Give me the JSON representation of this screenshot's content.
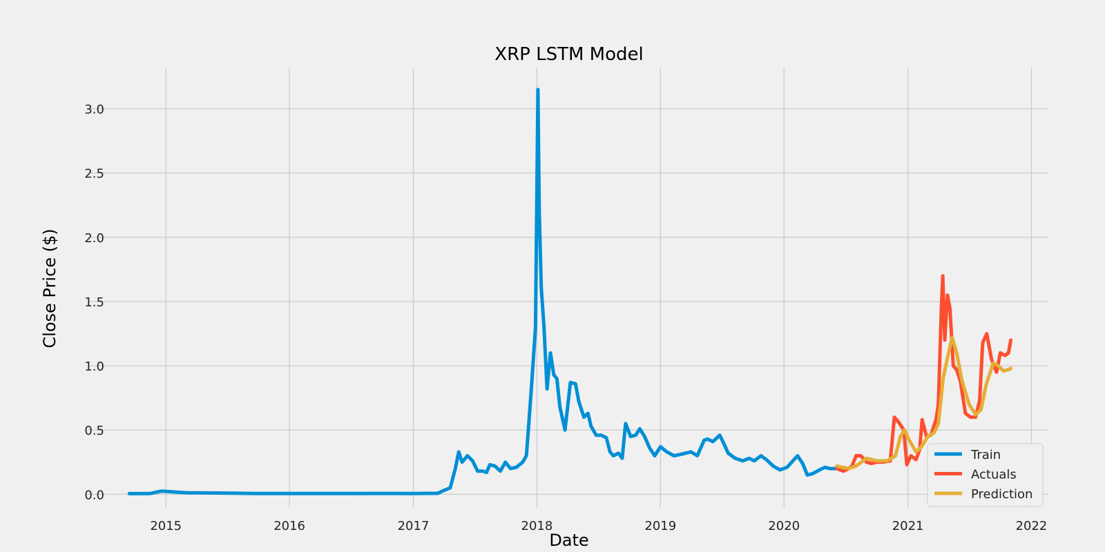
{
  "chart_data": {
    "type": "line",
    "title": "XRP LSTM Model",
    "xlabel": "Date",
    "ylabel": "Close Price ($)",
    "xlim": [
      "2014-05-15",
      "2022-02-20"
    ],
    "ylim": [
      -0.1,
      3.32
    ],
    "x_ticks": [
      "2015",
      "2016",
      "2017",
      "2018",
      "2019",
      "2020",
      "2021",
      "2022"
    ],
    "y_ticks": [
      "0.0",
      "0.5",
      "1.0",
      "1.5",
      "2.0",
      "2.5",
      "3.0"
    ],
    "grid": true,
    "legend_position": "lower-right",
    "series": [
      {
        "name": "Train",
        "color": "#008fd5",
        "points": [
          [
            "2014-09-15",
            0.005
          ],
          [
            "2014-10-15",
            0.005
          ],
          [
            "2014-11-15",
            0.006
          ],
          [
            "2014-12-01",
            0.015
          ],
          [
            "2014-12-20",
            0.025
          ],
          [
            "2015-01-15",
            0.02
          ],
          [
            "2015-03-01",
            0.012
          ],
          [
            "2015-06-01",
            0.01
          ],
          [
            "2015-10-01",
            0.006
          ],
          [
            "2016-01-01",
            0.006
          ],
          [
            "2016-06-01",
            0.006
          ],
          [
            "2016-10-01",
            0.007
          ],
          [
            "2017-01-01",
            0.006
          ],
          [
            "2017-03-15",
            0.008
          ],
          [
            "2017-04-01",
            0.03
          ],
          [
            "2017-04-20",
            0.05
          ],
          [
            "2017-05-05",
            0.2
          ],
          [
            "2017-05-15",
            0.33
          ],
          [
            "2017-05-25",
            0.25
          ],
          [
            "2017-06-10",
            0.3
          ],
          [
            "2017-06-25",
            0.26
          ],
          [
            "2017-07-10",
            0.18
          ],
          [
            "2017-07-25",
            0.18
          ],
          [
            "2017-08-05",
            0.17
          ],
          [
            "2017-08-15",
            0.23
          ],
          [
            "2017-08-30",
            0.22
          ],
          [
            "2017-09-15",
            0.18
          ],
          [
            "2017-09-30",
            0.25
          ],
          [
            "2017-10-15",
            0.2
          ],
          [
            "2017-11-01",
            0.21
          ],
          [
            "2017-11-20",
            0.25
          ],
          [
            "2017-12-01",
            0.3
          ],
          [
            "2017-12-15",
            0.8
          ],
          [
            "2017-12-28",
            1.3
          ],
          [
            "2018-01-04",
            3.15
          ],
          [
            "2018-01-08",
            2.2
          ],
          [
            "2018-01-14",
            1.6
          ],
          [
            "2018-01-22",
            1.3
          ],
          [
            "2018-01-31",
            0.82
          ],
          [
            "2018-02-10",
            1.1
          ],
          [
            "2018-02-20",
            0.93
          ],
          [
            "2018-03-01",
            0.9
          ],
          [
            "2018-03-10",
            0.68
          ],
          [
            "2018-03-25",
            0.5
          ],
          [
            "2018-04-10",
            0.87
          ],
          [
            "2018-04-25",
            0.86
          ],
          [
            "2018-05-05",
            0.72
          ],
          [
            "2018-05-20",
            0.6
          ],
          [
            "2018-06-01",
            0.63
          ],
          [
            "2018-06-10",
            0.53
          ],
          [
            "2018-06-25",
            0.46
          ],
          [
            "2018-07-10",
            0.46
          ],
          [
            "2018-07-25",
            0.44
          ],
          [
            "2018-08-05",
            0.33
          ],
          [
            "2018-08-15",
            0.3
          ],
          [
            "2018-08-30",
            0.32
          ],
          [
            "2018-09-10",
            0.28
          ],
          [
            "2018-09-20",
            0.55
          ],
          [
            "2018-10-05",
            0.45
          ],
          [
            "2018-10-20",
            0.46
          ],
          [
            "2018-11-01",
            0.51
          ],
          [
            "2018-11-15",
            0.45
          ],
          [
            "2018-11-30",
            0.36
          ],
          [
            "2018-12-15",
            0.3
          ],
          [
            "2019-01-01",
            0.37
          ],
          [
            "2019-01-20",
            0.33
          ],
          [
            "2019-02-10",
            0.3
          ],
          [
            "2019-03-01",
            0.31
          ],
          [
            "2019-04-01",
            0.33
          ],
          [
            "2019-04-20",
            0.3
          ],
          [
            "2019-05-10",
            0.42
          ],
          [
            "2019-05-20",
            0.43
          ],
          [
            "2019-06-05",
            0.41
          ],
          [
            "2019-06-25",
            0.46
          ],
          [
            "2019-07-10",
            0.38
          ],
          [
            "2019-07-20",
            0.32
          ],
          [
            "2019-08-10",
            0.28
          ],
          [
            "2019-09-01",
            0.26
          ],
          [
            "2019-09-20",
            0.28
          ],
          [
            "2019-10-05",
            0.26
          ],
          [
            "2019-10-25",
            0.3
          ],
          [
            "2019-11-10",
            0.27
          ],
          [
            "2019-11-30",
            0.22
          ],
          [
            "2019-12-20",
            0.19
          ],
          [
            "2020-01-10",
            0.21
          ],
          [
            "2020-02-10",
            0.3
          ],
          [
            "2020-02-25",
            0.24
          ],
          [
            "2020-03-10",
            0.15
          ],
          [
            "2020-03-25",
            0.16
          ],
          [
            "2020-04-15",
            0.19
          ],
          [
            "2020-05-01",
            0.21
          ],
          [
            "2020-05-15",
            0.2
          ],
          [
            "2020-06-05",
            0.2
          ]
        ]
      },
      {
        "name": "Actuals",
        "color": "#fc4f30",
        "points": [
          [
            "2020-06-05",
            0.2
          ],
          [
            "2020-06-25",
            0.18
          ],
          [
            "2020-07-10",
            0.2
          ],
          [
            "2020-07-20",
            0.22
          ],
          [
            "2020-08-01",
            0.3
          ],
          [
            "2020-08-15",
            0.3
          ],
          [
            "2020-09-01",
            0.25
          ],
          [
            "2020-09-15",
            0.24
          ],
          [
            "2020-10-01",
            0.25
          ],
          [
            "2020-10-20",
            0.25
          ],
          [
            "2020-11-10",
            0.26
          ],
          [
            "2020-11-22",
            0.6
          ],
          [
            "2020-12-05",
            0.56
          ],
          [
            "2020-12-20",
            0.5
          ],
          [
            "2020-12-29",
            0.23
          ],
          [
            "2021-01-10",
            0.3
          ],
          [
            "2021-01-25",
            0.27
          ],
          [
            "2021-02-05",
            0.35
          ],
          [
            "2021-02-12",
            0.58
          ],
          [
            "2021-02-25",
            0.45
          ],
          [
            "2021-03-10",
            0.46
          ],
          [
            "2021-03-25",
            0.58
          ],
          [
            "2021-04-01",
            0.7
          ],
          [
            "2021-04-10",
            1.45
          ],
          [
            "2021-04-14",
            1.7
          ],
          [
            "2021-04-20",
            1.2
          ],
          [
            "2021-04-28",
            1.55
          ],
          [
            "2021-05-05",
            1.45
          ],
          [
            "2021-05-15",
            1.0
          ],
          [
            "2021-05-25",
            0.97
          ],
          [
            "2021-06-05",
            0.88
          ],
          [
            "2021-06-20",
            0.63
          ],
          [
            "2021-07-05",
            0.6
          ],
          [
            "2021-07-20",
            0.6
          ],
          [
            "2021-08-01",
            0.73
          ],
          [
            "2021-08-10",
            1.18
          ],
          [
            "2021-08-22",
            1.25
          ],
          [
            "2021-09-05",
            1.05
          ],
          [
            "2021-09-20",
            0.95
          ],
          [
            "2021-10-01",
            1.1
          ],
          [
            "2021-10-15",
            1.08
          ],
          [
            "2021-10-25",
            1.1
          ],
          [
            "2021-11-01",
            1.2
          ]
        ]
      },
      {
        "name": "Prediction",
        "color": "#e5ae38",
        "points": [
          [
            "2020-06-05",
            0.22
          ],
          [
            "2020-07-10",
            0.2
          ],
          [
            "2020-08-01",
            0.22
          ],
          [
            "2020-09-01",
            0.28
          ],
          [
            "2020-10-01",
            0.26
          ],
          [
            "2020-11-01",
            0.26
          ],
          [
            "2020-11-25",
            0.3
          ],
          [
            "2020-12-10",
            0.45
          ],
          [
            "2020-12-22",
            0.5
          ],
          [
            "2021-01-05",
            0.42
          ],
          [
            "2021-01-25",
            0.33
          ],
          [
            "2021-02-10",
            0.37
          ],
          [
            "2021-03-01",
            0.45
          ],
          [
            "2021-03-20",
            0.48
          ],
          [
            "2021-04-01",
            0.55
          ],
          [
            "2021-04-15",
            0.9
          ],
          [
            "2021-05-01",
            1.1
          ],
          [
            "2021-05-12",
            1.22
          ],
          [
            "2021-05-25",
            1.1
          ],
          [
            "2021-06-10",
            0.88
          ],
          [
            "2021-07-01",
            0.7
          ],
          [
            "2021-07-20",
            0.62
          ],
          [
            "2021-08-05",
            0.66
          ],
          [
            "2021-08-20",
            0.85
          ],
          [
            "2021-09-10",
            1.02
          ],
          [
            "2021-09-25",
            1.0
          ],
          [
            "2021-10-10",
            0.96
          ],
          [
            "2021-10-25",
            0.97
          ],
          [
            "2021-11-01",
            0.98
          ]
        ]
      }
    ]
  }
}
